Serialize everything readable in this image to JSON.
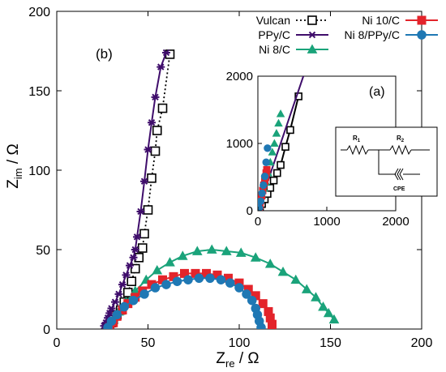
{
  "colors": {
    "vulcan": "#000000",
    "ppyc": "#3f0d6b",
    "ni8c": "#1aa37a",
    "ni10c": "#e3242b",
    "ni8ppyc": "#1f78b4"
  },
  "chart_data": {
    "type": "scatter",
    "xlabel": "Z",
    "xlabel_sub": "re",
    "xlabel_unit": " / Ω",
    "ylabel": "Z",
    "ylabel_sub": "im",
    "ylabel_unit": " / Ω",
    "xlim": [
      0,
      200
    ],
    "ylim": [
      0,
      200
    ],
    "xticks": [
      0,
      50,
      100,
      150,
      200
    ],
    "yticks": [
      0,
      50,
      100,
      150,
      200
    ],
    "panel_label": "(b)",
    "legend_placement": "top-right",
    "series": [
      {
        "name": "Vulcan",
        "key": "vulcan",
        "marker": "square-open",
        "line": "dotted",
        "x": [
          28,
          29,
          30,
          31,
          33,
          35,
          37,
          39,
          41,
          43,
          45,
          47,
          48,
          50,
          52,
          54,
          55,
          58,
          62
        ],
        "y": [
          1,
          2,
          4,
          6,
          9,
          12,
          17,
          23,
          30,
          38,
          45,
          51,
          60,
          75,
          95,
          112,
          125,
          139,
          173
        ]
      },
      {
        "name": "PPy/C",
        "key": "ppyc",
        "marker": "asterisk",
        "line": "solid",
        "x": [
          26,
          27,
          28,
          29,
          30,
          32,
          34,
          36,
          38,
          40,
          42,
          43,
          44,
          46,
          48,
          50,
          52,
          54,
          57,
          60
        ],
        "y": [
          2,
          4,
          7,
          10,
          13,
          17,
          22,
          28,
          34,
          40,
          45,
          50,
          58,
          74,
          93,
          113,
          130,
          146,
          165,
          174
        ]
      },
      {
        "name": "Ni 8/C",
        "key": "ni8c",
        "marker": "triangle",
        "line": "solid",
        "x": [
          29,
          31,
          34,
          38,
          43,
          49,
          55,
          62,
          69,
          77,
          85,
          93,
          101,
          109,
          117,
          124,
          131,
          137,
          142,
          146,
          149,
          152
        ],
        "y": [
          2,
          6,
          11,
          17,
          24,
          31,
          37,
          42,
          46,
          49,
          50,
          49,
          48,
          45,
          41,
          36,
          31,
          25,
          20,
          14,
          10,
          6
        ]
      },
      {
        "name": "Ni 10/C",
        "key": "ni10c",
        "marker": "square",
        "line": "solid",
        "x": [
          29,
          31,
          33,
          36,
          39,
          43,
          47,
          52,
          58,
          64,
          70,
          76,
          82,
          88,
          94,
          100,
          105,
          109,
          113,
          116,
          117,
          118,
          118
        ],
        "y": [
          1,
          4,
          8,
          12,
          16,
          20,
          24,
          28,
          31,
          33,
          35,
          35,
          35,
          34,
          32,
          29,
          25,
          21,
          16,
          11,
          7,
          3,
          0
        ]
      },
      {
        "name": "Ni 8/PPy/C",
        "key": "ni8ppyc",
        "marker": "circle",
        "line": "solid",
        "x": [
          28,
          30,
          33,
          37,
          42,
          48,
          54,
          60,
          66,
          72,
          78,
          84,
          90,
          95,
          100,
          104,
          107,
          109,
          110,
          111,
          112
        ],
        "y": [
          1,
          5,
          9,
          14,
          18,
          22,
          26,
          28,
          30,
          31,
          32,
          32,
          31,
          29,
          26,
          22,
          18,
          13,
          9,
          5,
          1
        ]
      }
    ]
  },
  "inset": {
    "label": "(a)",
    "xlim": [
      0,
      2000
    ],
    "ylim": [
      0,
      2000
    ],
    "xticks": [
      0,
      1000,
      2000
    ],
    "yticks": [
      0,
      1000,
      2000
    ],
    "series": [
      {
        "key": "vulcan",
        "marker": "square-open",
        "line": "solid",
        "x": [
          30,
          60,
          100,
          140,
          180,
          230,
          280,
          330,
          400,
          470,
          590
        ],
        "y": [
          40,
          100,
          170,
          250,
          340,
          450,
          560,
          680,
          950,
          1200,
          1700
        ]
      },
      {
        "key": "ppyc",
        "marker": "none",
        "line": "solid",
        "x": [
          0,
          660
        ],
        "y": [
          0,
          2000
        ]
      },
      {
        "key": "ni8c",
        "marker": "triangle",
        "line": "none",
        "x": [
          60,
          90,
          120,
          150,
          180,
          210,
          240,
          270,
          300,
          330
        ],
        "y": [
          230,
          330,
          420,
          560,
          720,
          870,
          1000,
          1150,
          1300,
          1440
        ]
      },
      {
        "key": "ni10c",
        "marker": "square",
        "line": "none",
        "x": [
          20,
          30,
          40,
          55,
          70,
          85,
          100,
          110,
          120,
          130
        ],
        "y": [
          30,
          80,
          150,
          220,
          300,
          380,
          440,
          500,
          560,
          610
        ]
      },
      {
        "key": "ni8ppyc",
        "marker": "circle",
        "line": "none",
        "x": [
          20,
          40,
          60,
          80,
          100,
          120,
          140
        ],
        "y": [
          40,
          140,
          260,
          380,
          510,
          720,
          930
        ]
      }
    ]
  },
  "circuit": {
    "r1": "R",
    "r1_sub": "1",
    "r2": "R",
    "r2_sub": "2",
    "cpe": "CPE"
  }
}
